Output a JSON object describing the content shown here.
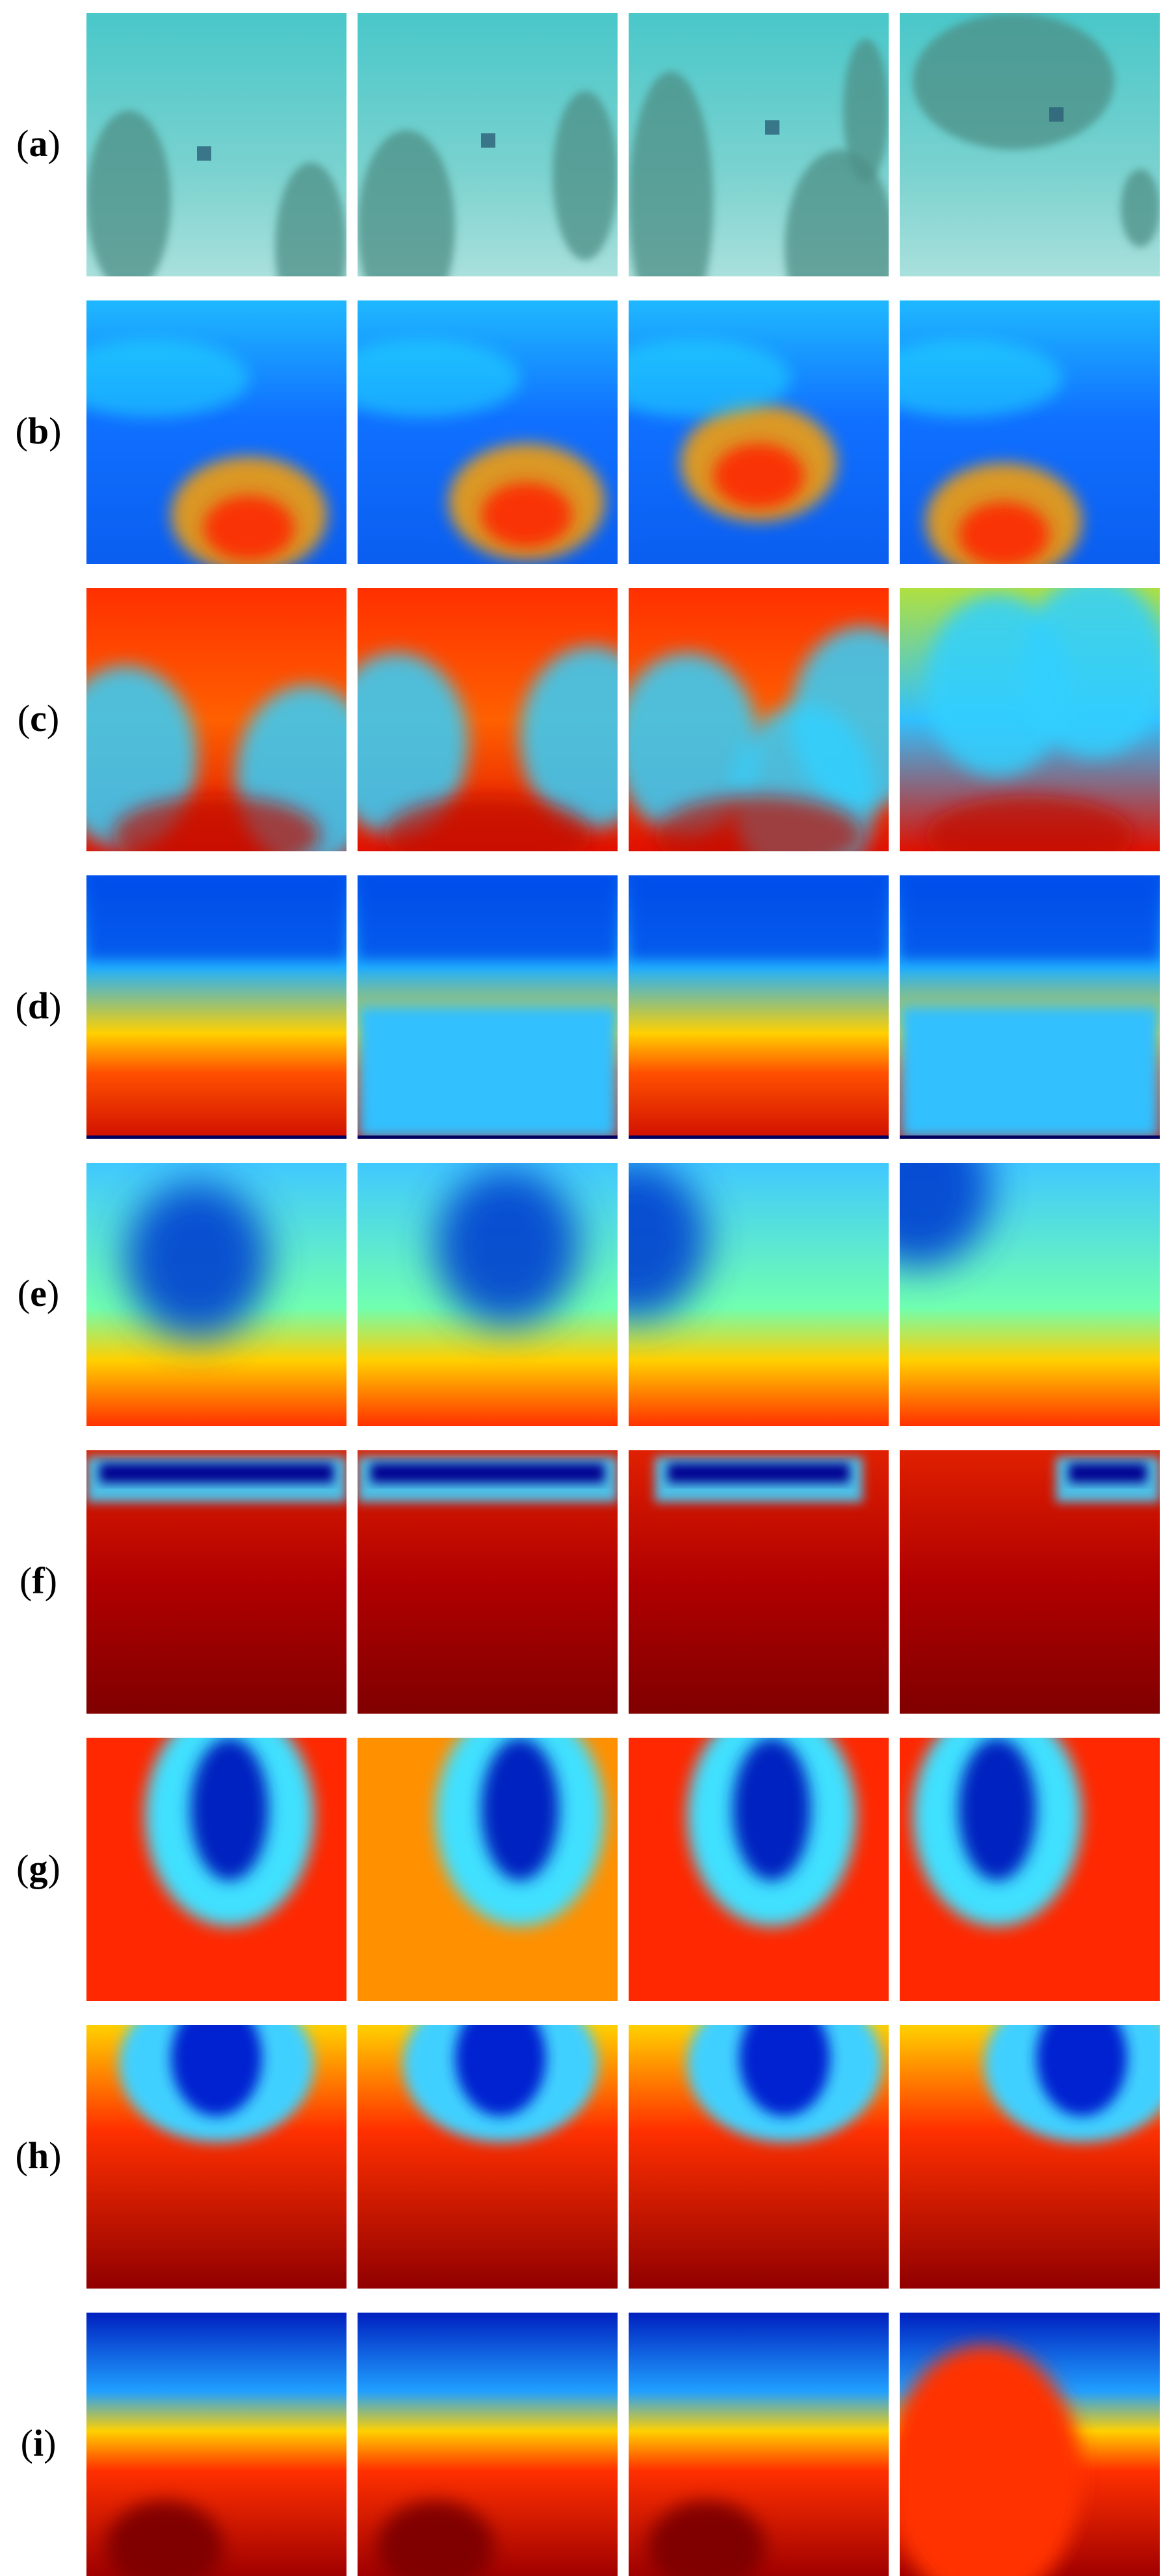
{
  "figure": {
    "rows": [
      {
        "label_open": "(",
        "label_letter": "a",
        "label_close": ")",
        "kind": "underwater-photo",
        "panels": 4
      },
      {
        "label_open": "(",
        "label_letter": "b",
        "label_close": ")",
        "kind": "jet-colormap-detail",
        "panels": 4
      },
      {
        "label_open": "(",
        "label_letter": "c",
        "label_close": ")",
        "kind": "jet-colormap-detail-inverted",
        "panels": 4
      },
      {
        "label_open": "(",
        "label_letter": "d",
        "label_close": ")",
        "kind": "depth-map",
        "panels": 4
      },
      {
        "label_open": "(",
        "label_letter": "e",
        "label_close": ")",
        "kind": "depth-map-smooth",
        "panels": 4
      },
      {
        "label_open": "(",
        "label_letter": "f",
        "label_close": ")",
        "kind": "depth-map-dark-red",
        "panels": 4
      },
      {
        "label_open": "(",
        "label_letter": "g",
        "label_close": ")",
        "kind": "depth-map-blob",
        "panels": 4
      },
      {
        "label_open": "(",
        "label_letter": "h",
        "label_close": ")",
        "kind": "depth-map-streaks",
        "panels": 4
      },
      {
        "label_open": "(",
        "label_letter": "i",
        "label_close": ")",
        "kind": "depth-map-top-blue",
        "panels": 4
      }
    ]
  },
  "colors": {
    "jet_dark_blue": "#00008f",
    "jet_blue": "#0050ff",
    "jet_cyan": "#20e0ff",
    "jet_yellow": "#ffe000",
    "jet_red": "#ff2000",
    "jet_dark_red": "#8f0000",
    "water": "#3fc0c0"
  }
}
